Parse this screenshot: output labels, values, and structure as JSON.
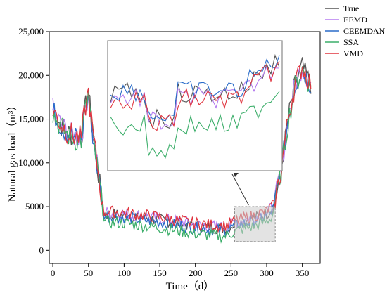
{
  "chart_data": {
    "type": "line",
    "xlabel": "Time（d）",
    "ylabel": "Natural gas load（m³）",
    "xlim": [
      -5,
      375
    ],
    "ylim": [
      -1500,
      25000
    ],
    "x_ticks": [
      "0",
      "50",
      "100",
      "150",
      "200",
      "250",
      "300",
      "350"
    ],
    "x_tick_values": [
      0,
      50,
      100,
      150,
      200,
      250,
      300,
      350
    ],
    "y_ticks": [
      "0",
      "5000",
      "10,000",
      "15,000",
      "20,000",
      "25,000"
    ],
    "y_tick_values": [
      0,
      5000,
      10000,
      15000,
      20000,
      25000
    ],
    "legend_position": "top-right",
    "series": [
      {
        "name": "True",
        "color": "#555555"
      },
      {
        "name": "EEMD",
        "color": "#b57cf0"
      },
      {
        "name": "CEEMDAN",
        "color": "#2a6cc9"
      },
      {
        "name": "SSA",
        "color": "#3cae6a"
      },
      {
        "name": "VMD",
        "color": "#e0353f"
      }
    ],
    "segments": [
      {
        "x": [
          0,
          10,
          20,
          30,
          40,
          45,
          50,
          55,
          60,
          65,
          70,
          72
        ],
        "y": [
          16000,
          14500,
          13500,
          13000,
          12800,
          16000,
          18000,
          14000,
          11000,
          8000,
          5000,
          4200
        ]
      },
      {
        "x": [
          72,
          100,
          150,
          200,
          240,
          260,
          280,
          300,
          310
        ],
        "y": [
          4200,
          4000,
          3500,
          2800,
          2500,
          3200,
          3600,
          4200,
          5000
        ]
      },
      {
        "x": [
          310,
          320,
          330,
          340,
          350,
          355,
          362
        ],
        "y": [
          5000,
          9000,
          15000,
          19000,
          21000,
          20000,
          19000
        ]
      }
    ],
    "inset_region": {
      "x": [
        255,
        312
      ],
      "y": [
        1000,
        5000
      ]
    }
  }
}
